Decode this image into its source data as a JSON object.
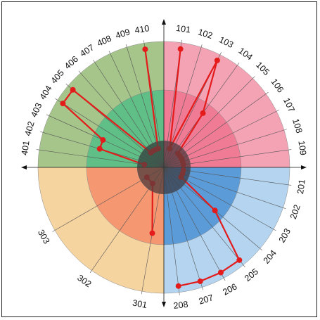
{
  "chart_data": {
    "type": "radial",
    "title": "",
    "labels": {
      "q1": [
        "101",
        "102",
        "103",
        "104",
        "105",
        "106",
        "107",
        "108",
        "109"
      ],
      "q2": [
        "201",
        "202",
        "203",
        "204",
        "205",
        "206",
        "207",
        "208"
      ],
      "q3": [
        "301",
        "302",
        "303"
      ],
      "q4": [
        "401",
        "402",
        "403",
        "404",
        "405",
        "406",
        "407",
        "408",
        "409",
        "410"
      ]
    },
    "series": [
      {
        "quadrant": "q1",
        "values": [
          3,
          1,
          3,
          2,
          1,
          1,
          1,
          1,
          1
        ]
      },
      {
        "quadrant": "q2",
        "values": [
          1,
          1,
          1,
          2,
          3,
          3,
          3,
          3
        ]
      },
      {
        "quadrant": "q3",
        "values": [
          2,
          1,
          1
        ]
      },
      {
        "quadrant": "q4",
        "values": [
          1,
          2,
          2,
          3,
          3,
          1,
          1,
          1,
          1,
          3
        ]
      }
    ],
    "levels": 3,
    "colors": {
      "q1": [
        "#f4a3b5",
        "#f07b95",
        "#d9506f"
      ],
      "q2": [
        "#b4d4ef",
        "#5b9bd8",
        "#3e73b8"
      ],
      "q3": [
        "#f6d4a0",
        "#f59872",
        "#d76b4e"
      ],
      "q4": [
        "#a6c58a",
        "#5fbf86",
        "#2e8f63"
      ],
      "line": "#e31b1b"
    }
  }
}
